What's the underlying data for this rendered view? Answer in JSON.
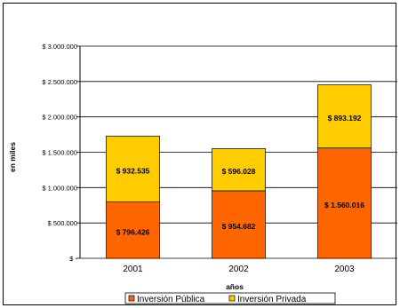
{
  "chart_data": {
    "type": "bar",
    "stacked": true,
    "categories": [
      "2001",
      "2002",
      "2003"
    ],
    "series": [
      {
        "name": "Inversión Pública",
        "color": "#FF6600",
        "values": [
          796426,
          954682,
          1560016
        ],
        "labels": [
          "$ 796.426",
          "$ 954.682",
          "$ 1.560.016"
        ]
      },
      {
        "name": "Inversión Privada",
        "color": "#FFCC00",
        "values": [
          932535,
          596028,
          893192
        ],
        "labels": [
          "$ 932.535",
          "$ 596.028",
          "$ 893.192"
        ]
      }
    ],
    "xlabel": "años",
    "ylabel": "en miles",
    "ylim": [
      0,
      3000000
    ],
    "yticks": [
      0,
      500000,
      1000000,
      1500000,
      2000000,
      2500000,
      3000000
    ],
    "ytick_labels": [
      "$ -",
      "$ 500.000",
      "$ 1.000.000",
      "$ 1.500.000",
      "$ 2.000.000",
      "$ 2.500.000",
      "$ 3.000.000"
    ],
    "grid": true,
    "legend_position": "bottom"
  }
}
